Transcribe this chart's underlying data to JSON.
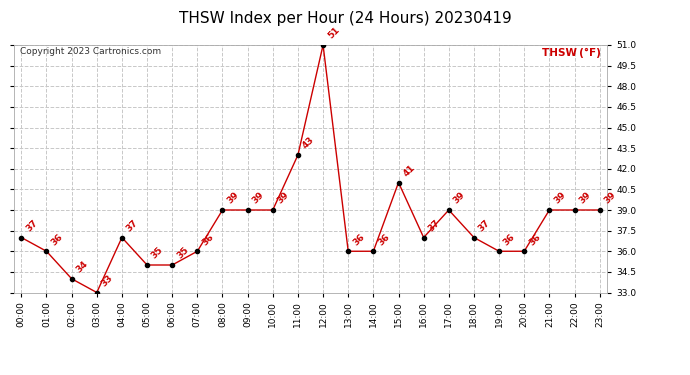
{
  "title": "THSW Index per Hour (24 Hours) 20230419",
  "copyright": "Copyright 2023 Cartronics.com",
  "legend_label": "THSW (°F)",
  "hours": [
    0,
    1,
    2,
    3,
    4,
    5,
    6,
    7,
    8,
    9,
    10,
    11,
    12,
    13,
    14,
    15,
    16,
    17,
    18,
    19,
    20,
    21,
    22,
    23
  ],
  "values": [
    37,
    36,
    34,
    33,
    37,
    35,
    35,
    36,
    39,
    39,
    39,
    43,
    51,
    36,
    36,
    41,
    37,
    39,
    37,
    36,
    36,
    39,
    39,
    39
  ],
  "line_color": "#cc0000",
  "marker_color": "#000000",
  "background_color": "#ffffff",
  "grid_color": "#c8c8c8",
  "ylim_min": 33.0,
  "ylim_max": 51.0,
  "yticks": [
    33.0,
    34.5,
    36.0,
    37.5,
    39.0,
    40.5,
    42.0,
    43.5,
    45.0,
    46.5,
    48.0,
    49.5,
    51.0
  ],
  "title_fontsize": 11,
  "label_fontsize": 7.5,
  "tick_fontsize": 6.5,
  "annotation_fontsize": 6.5,
  "copyright_fontsize": 6.5,
  "legend_fontsize": 7.5
}
